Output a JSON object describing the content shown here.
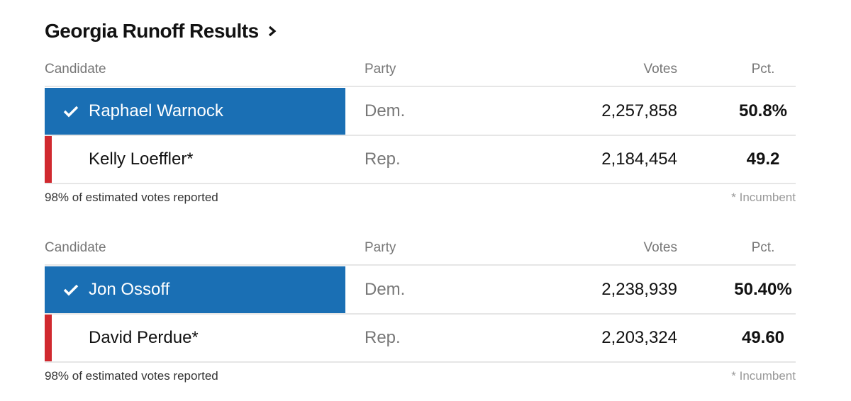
{
  "header": {
    "title": "Georgia Runoff Results"
  },
  "tables": [
    {
      "columns": [
        "Candidate",
        "Party",
        "Votes",
        "Pct."
      ],
      "rows": [
        {
          "name": "Raphael Warnock",
          "party": "Dem.",
          "votes": "2,257,858",
          "pct": "50.8%",
          "winner": true,
          "color": "#1a6fb4"
        },
        {
          "name": "Kelly Loeffler*",
          "party": "Rep.",
          "votes": "2,184,454",
          "pct": "49.2",
          "winner": false,
          "color": "#d0292f"
        }
      ],
      "reported": "98% of estimated votes reported",
      "note": "* Incumbent"
    },
    {
      "columns": [
        "Candidate",
        "Party",
        "Votes",
        "Pct."
      ],
      "rows": [
        {
          "name": "Jon Ossoff",
          "party": "Dem.",
          "votes": "2,238,939",
          "pct": "50.40%",
          "winner": true,
          "color": "#1a6fb4"
        },
        {
          "name": "David Perdue*",
          "party": "Rep.",
          "votes": "2,203,324",
          "pct": "49.60",
          "winner": false,
          "color": "#d0292f"
        }
      ],
      "reported": "98% of estimated votes reported",
      "note": "* Incumbent"
    }
  ]
}
